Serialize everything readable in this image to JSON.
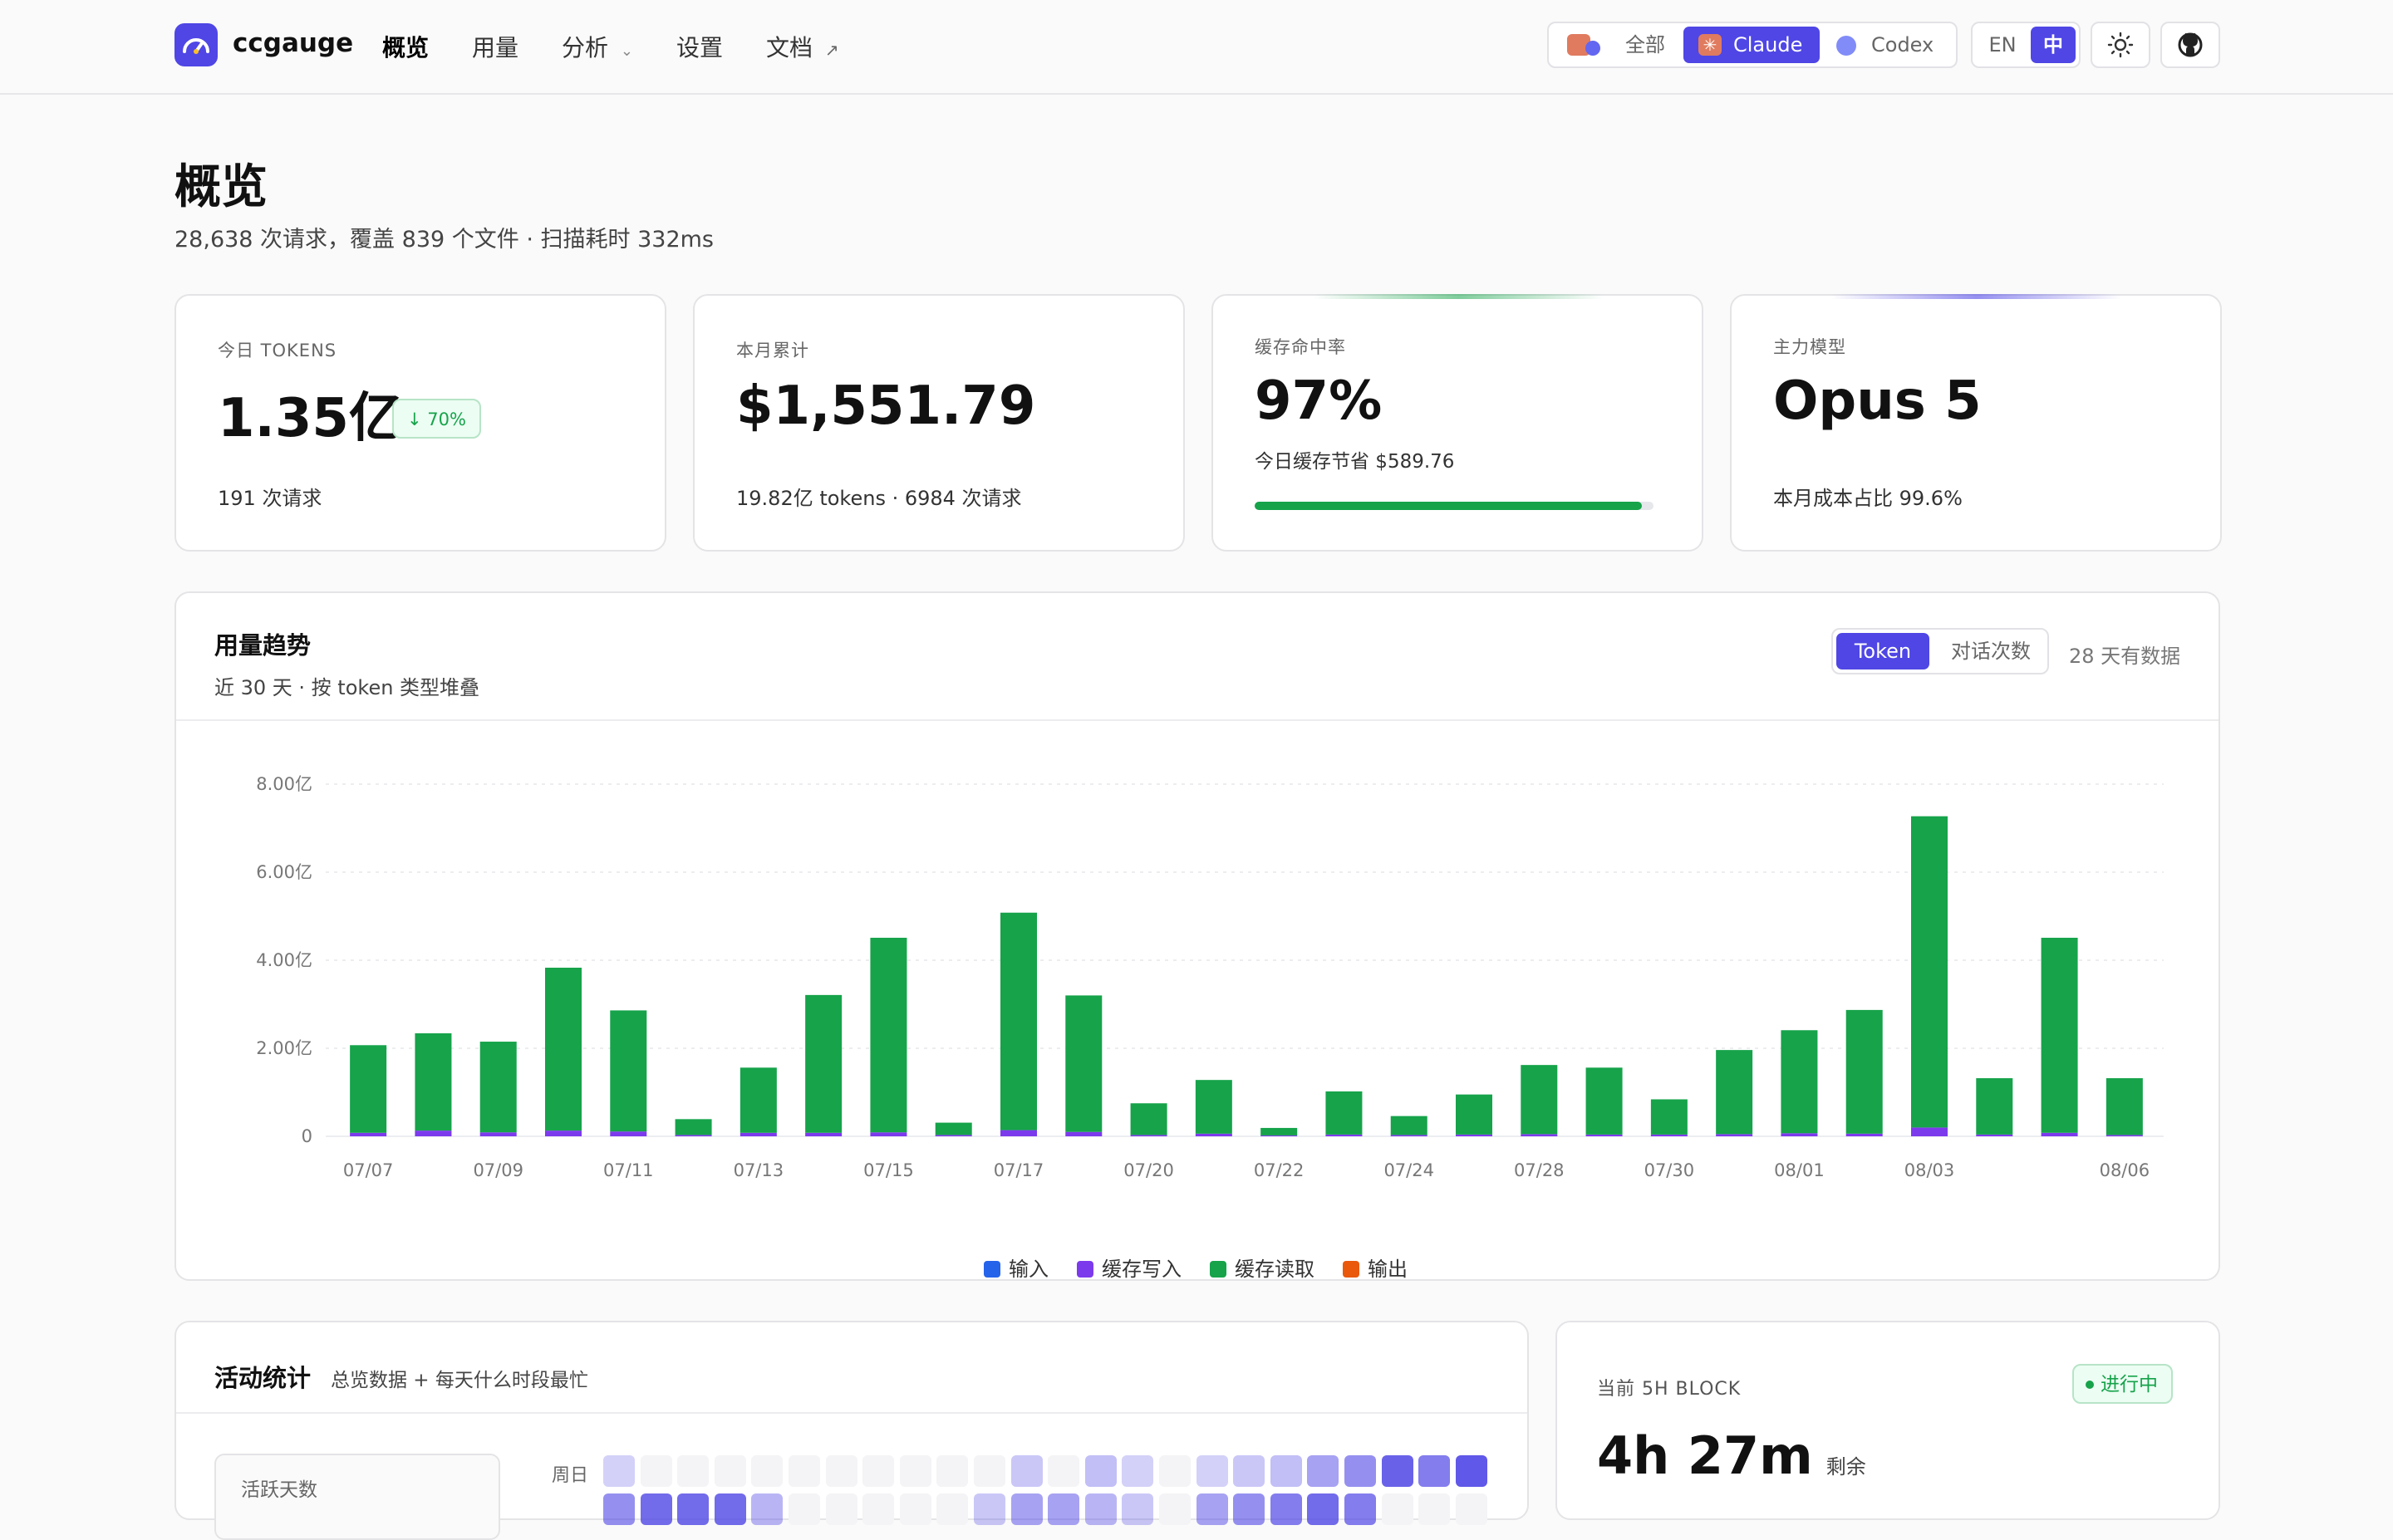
{
  "nav": {
    "brand": "ccgauge",
    "items": [
      {
        "label": "概览",
        "active": true
      },
      {
        "label": "用量"
      },
      {
        "label": "分析",
        "has_caret": true
      },
      {
        "label": "设置"
      },
      {
        "label": "文档",
        "external": true
      }
    ]
  },
  "source_switch": {
    "options": [
      {
        "label": "全部",
        "icon": "all-sources-icon"
      },
      {
        "label": "Claude",
        "icon": "claude-icon",
        "selected": true
      },
      {
        "label": "Codex",
        "icon": "codex-icon"
      }
    ]
  },
  "lang_switch": {
    "en": "EN",
    "zh": "中",
    "selected": "中"
  },
  "icons": {
    "theme": "sun-icon",
    "github": "github-icon"
  },
  "page": {
    "title": "概览",
    "subtitle": "28,638 次请求，覆盖 839 个文件 · 扫描耗时 332ms"
  },
  "stats": [
    {
      "label": "今日 TOKENS",
      "value": "1.35亿",
      "badge": "↓ 70%",
      "foot": "191 次请求"
    },
    {
      "label": "本月累计",
      "value": "$1,551.79",
      "foot": "19.82亿 tokens · 6984 次请求"
    },
    {
      "label": "缓存命中率",
      "value": "97%",
      "foot": "今日缓存节省 $589.76",
      "progress": 0.97
    },
    {
      "label": "主力模型",
      "value": "Opus 5",
      "foot": "本月成本占比 99.6%"
    }
  ],
  "trend": {
    "title": "用量趋势",
    "subtitle": "近 30 天 · 按 token 类型堆叠",
    "tabs": [
      {
        "label": "Token",
        "selected": true
      },
      {
        "label": "对话次数"
      }
    ],
    "note": "28 天有数据"
  },
  "chart_data": {
    "type": "bar",
    "stacked": true,
    "y_ticks": [
      "0",
      "2.00亿",
      "4.00亿",
      "6.00亿",
      "8.00亿"
    ],
    "ylim": [
      0,
      8
    ],
    "y_unit": "亿",
    "x_tick_labels": [
      "07/07",
      "07/09",
      "07/11",
      "07/13",
      "07/15",
      "07/17",
      "07/20",
      "07/22",
      "07/24",
      "07/28",
      "07/30",
      "08/01",
      "08/03",
      "08/06"
    ],
    "x_tick_bar_index": [
      0,
      2,
      4,
      6,
      8,
      10,
      12,
      14,
      16,
      18,
      20,
      22,
      24,
      27
    ],
    "bar_count": 28,
    "legend": [
      {
        "name": "输入",
        "color": "#2563eb"
      },
      {
        "name": "缓存写入",
        "color": "#7c3aed"
      },
      {
        "name": "缓存读取",
        "color": "#16a34a"
      },
      {
        "name": "输出",
        "color": "#ea580c"
      }
    ],
    "series": [
      {
        "name": "输入",
        "values": [
          0,
          0,
          0,
          0,
          0,
          0,
          0,
          0,
          0,
          0,
          0,
          0,
          0,
          0,
          0,
          0,
          0,
          0,
          0,
          0,
          0,
          0,
          0,
          0,
          0,
          0,
          0,
          0
        ]
      },
      {
        "name": "缓存写入",
        "values": [
          0.08,
          0.13,
          0.09,
          0.13,
          0.11,
          0.03,
          0.08,
          0.08,
          0.09,
          0.03,
          0.14,
          0.1,
          0.03,
          0.06,
          0.02,
          0.04,
          0.03,
          0.04,
          0.05,
          0.04,
          0.04,
          0.05,
          0.07,
          0.06,
          0.2,
          0.04,
          0.08,
          0.03
        ]
      },
      {
        "name": "缓存读取",
        "values": [
          1.99,
          2.21,
          2.06,
          3.7,
          2.75,
          0.36,
          1.48,
          3.13,
          4.42,
          0.28,
          4.94,
          3.1,
          0.72,
          1.22,
          0.17,
          0.98,
          0.43,
          0.91,
          1.57,
          1.52,
          0.8,
          1.91,
          2.34,
          2.81,
          7.07,
          1.28,
          4.43,
          1.29
        ]
      },
      {
        "name": "输出",
        "values": [
          0,
          0,
          0,
          0,
          0,
          0,
          0,
          0,
          0,
          0,
          0,
          0,
          0,
          0,
          0,
          0,
          0,
          0,
          0,
          0,
          0,
          0,
          0,
          0,
          0,
          0,
          0,
          0
        ]
      }
    ]
  },
  "activity": {
    "title": "活动统计",
    "subtitle": "总览数据 + 每天什么时段最忙",
    "stat_label": "活跃天数",
    "row_label": "周日"
  },
  "block": {
    "label": "当前 5H BLOCK",
    "status": "进行中",
    "value": "4h 27m",
    "suffix": "剩余"
  },
  "colors": {
    "accent": "#4f46e5",
    "green": "#16a34a",
    "purple": "#7c3aed"
  }
}
